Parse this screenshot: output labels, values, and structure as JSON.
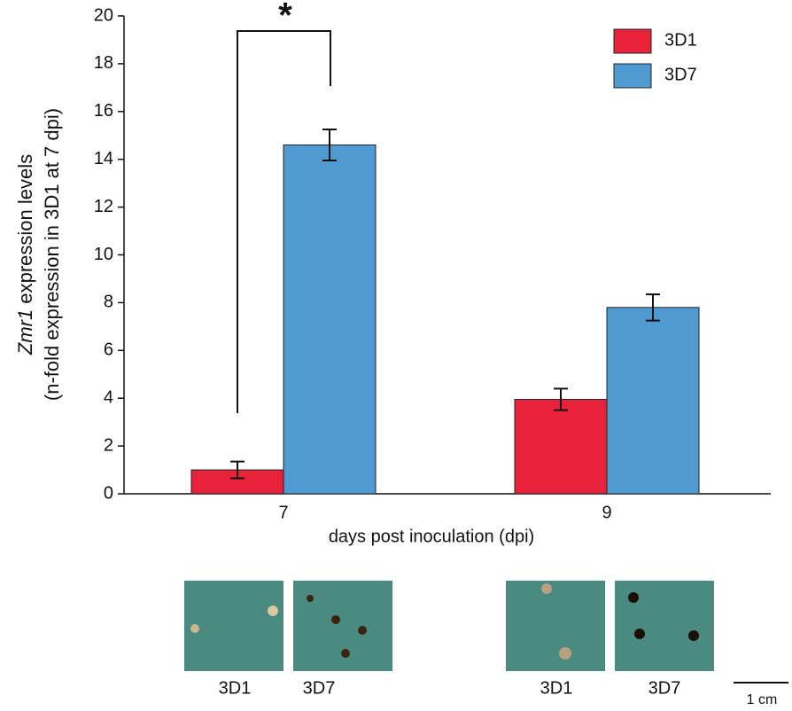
{
  "chart_data": {
    "type": "bar",
    "y_label_italic": "Zmr1",
    "y_label_rest": " expression levels",
    "y_label_line2": "(n-fold expression in 3D1 at 7 dpi)",
    "x_label": "days post inoculation (dpi)",
    "annotation": "*",
    "categories": [
      "7",
      "9"
    ],
    "series": [
      {
        "name": "3D1",
        "color": "#e8223a",
        "values": [
          1.0,
          3.95
        ],
        "errors": [
          0.35,
          0.45
        ]
      },
      {
        "name": "3D7",
        "color": "#4f9bd1",
        "values": [
          14.6,
          7.8
        ],
        "errors": [
          0.65,
          0.55
        ]
      }
    ],
    "ylim": [
      0,
      20
    ],
    "yticks": [
      0,
      2,
      4,
      6,
      8,
      10,
      12,
      14,
      16,
      18,
      20
    ],
    "legend": "upper right",
    "image_labels": [
      "3D1",
      "3D7",
      "3D1",
      "3D7"
    ],
    "scale_bar": "1 cm"
  }
}
